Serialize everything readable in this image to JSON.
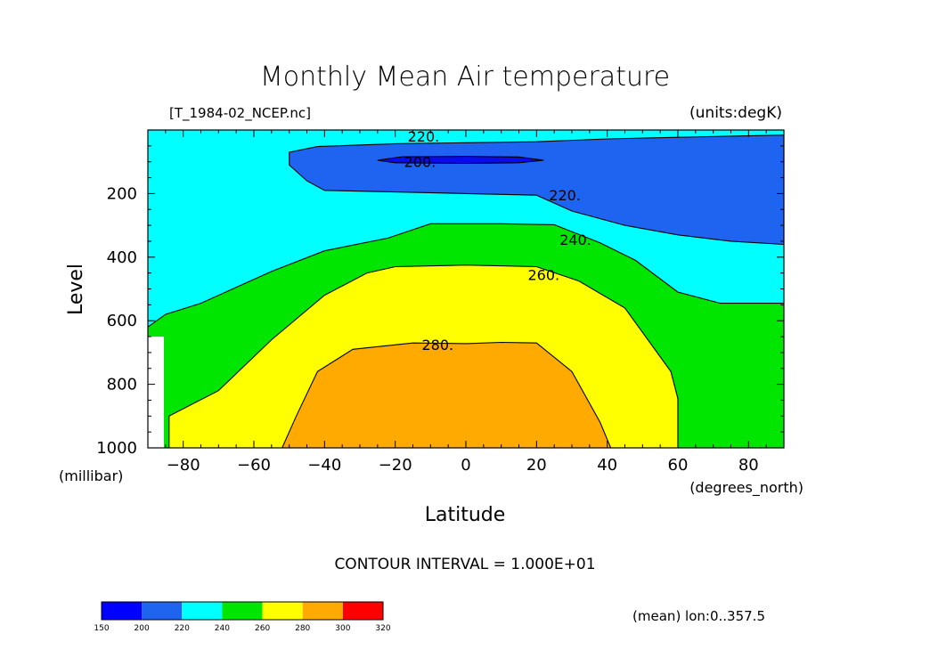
{
  "header": {
    "title": "Monthly Mean Air temperature",
    "file_label": "[T_1984-02_NCEP.nc]",
    "units_label": "(units:degK)"
  },
  "footer": {
    "contour_interval": "CONTOUR INTERVAL = 1.000E+01",
    "mean_note": "(mean) lon:0..357.5"
  },
  "chart_data": {
    "type": "heatmap",
    "subtype": "filled-contour",
    "title": "Monthly Mean Air temperature",
    "xlabel": "Latitude",
    "x_units": "(degrees_north)",
    "ylabel": "Level",
    "y_units": "(millibar)",
    "xlim": [
      -90,
      90
    ],
    "ylim": [
      1000,
      0
    ],
    "y_inverted": true,
    "x_ticks": [
      -80,
      -60,
      -40,
      -20,
      0,
      20,
      40,
      60,
      80
    ],
    "x_tick_labels": [
      "−80",
      "−60",
      "−40",
      "−20",
      "0",
      "20",
      "40",
      "60",
      "80"
    ],
    "y_ticks": [
      200,
      400,
      600,
      800,
      1000
    ],
    "y_tick_labels": [
      "200",
      "400",
      "600",
      "800",
      "1000"
    ],
    "contour_interval": 10,
    "contour_labels": [
      {
        "text": "220.",
        "lat": -12,
        "lev": 20
      },
      {
        "text": "200.",
        "lat": -13,
        "lev": 100
      },
      {
        "text": "220.",
        "lat": 28,
        "lev": 205
      },
      {
        "text": "240.",
        "lat": 31,
        "lev": 345
      },
      {
        "text": "260.",
        "lat": 22,
        "lev": 455
      },
      {
        "text": "280.",
        "lat": -8,
        "lev": 675
      }
    ],
    "bands": [
      {
        "range": [
          210,
          220
        ],
        "color": "#00ffff"
      },
      {
        "range": [
          220,
          230
        ],
        "color": "#1e64f0",
        "polygon": [
          [
            -50,
            70
          ],
          [
            -42,
            52
          ],
          [
            -20,
            43
          ],
          [
            0,
            40
          ],
          [
            20,
            37
          ],
          [
            40,
            28
          ],
          [
            60,
            23
          ],
          [
            90,
            16
          ],
          [
            90,
            360
          ],
          [
            75,
            350
          ],
          [
            60,
            330
          ],
          [
            45,
            300
          ],
          [
            30,
            255
          ],
          [
            20,
            205
          ],
          [
            0,
            200
          ],
          [
            -20,
            195
          ],
          [
            -40,
            190
          ],
          [
            -45,
            160
          ],
          [
            -50,
            110
          ]
        ]
      },
      {
        "range": [
          200,
          210
        ],
        "color": "#0a0af0",
        "polygon": [
          [
            -25,
            95
          ],
          [
            -18,
            84
          ],
          [
            0,
            83
          ],
          [
            15,
            85
          ],
          [
            22,
            95
          ],
          [
            15,
            103
          ],
          [
            0,
            105
          ],
          [
            -20,
            103
          ]
        ]
      },
      {
        "range": [
          230,
          250
        ],
        "color": "#00e600",
        "polygon": [
          [
            -90,
            620
          ],
          [
            -85,
            580
          ],
          [
            -75,
            545
          ],
          [
            -55,
            445
          ],
          [
            -40,
            380
          ],
          [
            -22,
            340
          ],
          [
            -10,
            295
          ],
          [
            10,
            295
          ],
          [
            25,
            298
          ],
          [
            38,
            355
          ],
          [
            48,
            410
          ],
          [
            60,
            510
          ],
          [
            72,
            545
          ],
          [
            90,
            545
          ],
          [
            90,
            1000
          ],
          [
            -90,
            1000
          ]
        ]
      },
      {
        "range": [
          250,
          270
        ],
        "color": "#ffff00",
        "polygon": [
          [
            -84,
            900
          ],
          [
            -70,
            820
          ],
          [
            -55,
            660
          ],
          [
            -40,
            520
          ],
          [
            -28,
            450
          ],
          [
            -20,
            430
          ],
          [
            0,
            425
          ],
          [
            20,
            430
          ],
          [
            32,
            475
          ],
          [
            45,
            560
          ],
          [
            58,
            760
          ],
          [
            60,
            845
          ],
          [
            60,
            1000
          ],
          [
            -84,
            1000
          ]
        ]
      },
      {
        "range": [
          270,
          290
        ],
        "color": "#ffaa00",
        "polygon": [
          [
            -52,
            1000
          ],
          [
            -48,
            900
          ],
          [
            -42,
            760
          ],
          [
            -32,
            690
          ],
          [
            -15,
            670
          ],
          [
            0,
            672
          ],
          [
            10,
            668
          ],
          [
            20,
            670
          ],
          [
            30,
            760
          ],
          [
            38,
            920
          ],
          [
            41,
            1000
          ]
        ]
      }
    ],
    "colorbar": {
      "levels": [
        150,
        200,
        220,
        240,
        260,
        280,
        300,
        320
      ],
      "colors": [
        "#0000ff",
        "#1e64f0",
        "#00ffff",
        "#00e600",
        "#ffff00",
        "#ffaa00",
        "#ff0000"
      ]
    }
  }
}
